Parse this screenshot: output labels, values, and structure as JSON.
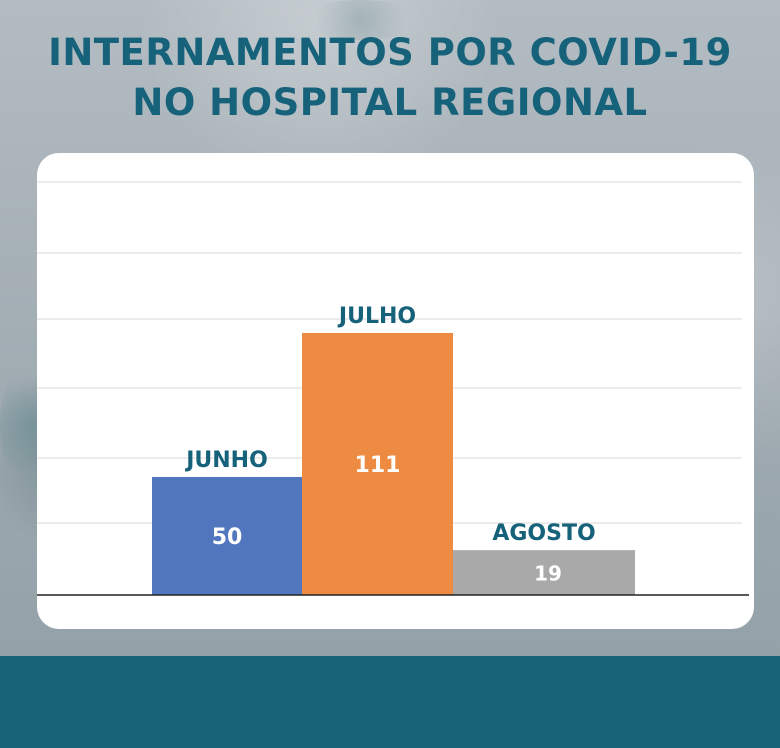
{
  "title_lines": [
    "INTERNAMENTOS POR COVID-19",
    "NO HOSPITAL REGIONAL"
  ],
  "colors": {
    "title": "#16627a",
    "footer": "#176277",
    "bar_junho": "#5276bd",
    "bar_julho": "#ee8b42",
    "bar_agosto": "#a9a9a9"
  },
  "chart_data": {
    "type": "bar",
    "title": "INTERNAMENTOS POR COVID-19 NO HOSPITAL REGIONAL",
    "categories": [
      "JUNHO",
      "JULHO",
      "AGOSTO"
    ],
    "values": [
      50,
      111,
      19
    ],
    "xlabel": "",
    "ylabel": "",
    "ylim": [
      0,
      130
    ],
    "grid": true,
    "legend": "none"
  }
}
